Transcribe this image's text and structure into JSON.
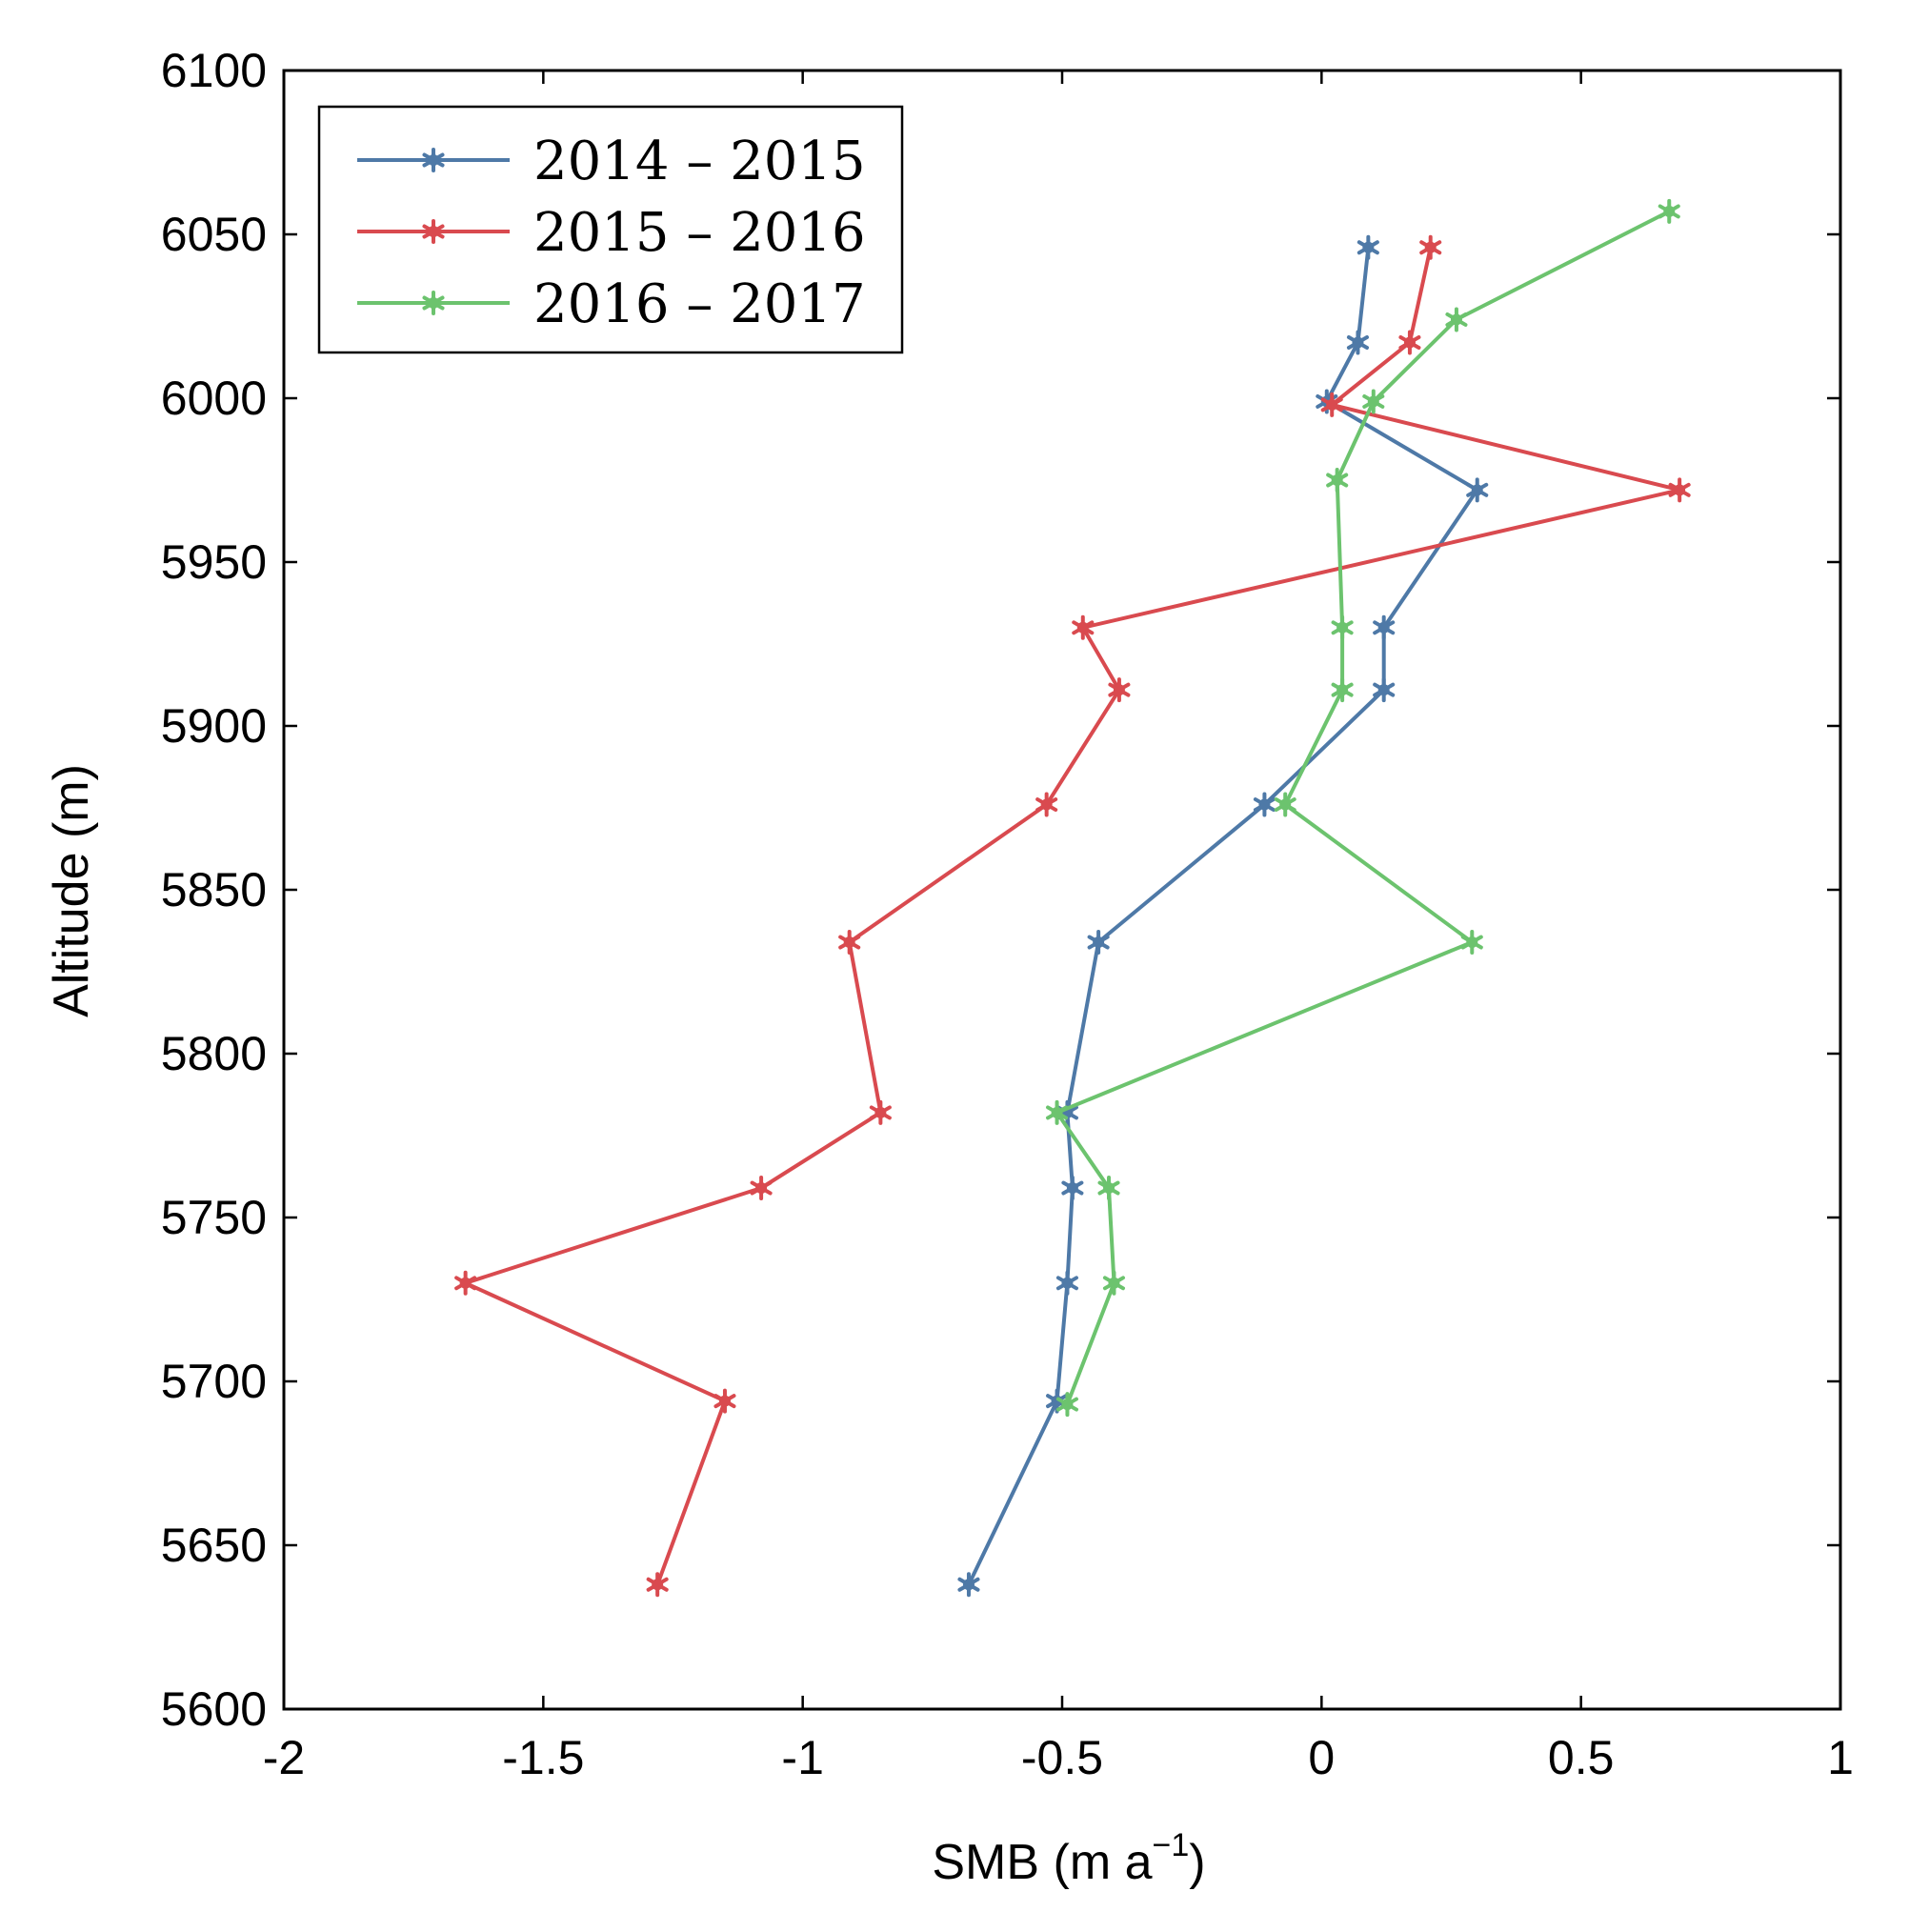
{
  "chart_data": {
    "type": "line",
    "title": "",
    "xlabel": {
      "main": "SMB (m a",
      "superscript": "−1",
      "close": ")"
    },
    "ylabel": "Altitude (m)",
    "xlim": [
      -2,
      1
    ],
    "ylim": [
      5600,
      6100
    ],
    "xticks": [
      -2,
      -1.5,
      -1,
      -0.5,
      0,
      0.5,
      1
    ],
    "xtick_labels": [
      "-2",
      "-1.5",
      "-1",
      "-0.5",
      "0",
      "0.5",
      "1"
    ],
    "yticks": [
      5600,
      5650,
      5700,
      5750,
      5800,
      5850,
      5900,
      5950,
      6000,
      6050,
      6100
    ],
    "ytick_labels": [
      "5600",
      "5650",
      "5700",
      "5750",
      "5800",
      "5850",
      "5900",
      "5950",
      "6000",
      "6050",
      "6100"
    ],
    "grid": false,
    "legend_position": "top-left",
    "marker": "asterisk",
    "series": [
      {
        "name": "2014 – 2015",
        "color": "#4e79a7",
        "points": [
          {
            "x": -0.68,
            "y": 5638
          },
          {
            "x": -0.51,
            "y": 5694
          },
          {
            "x": -0.49,
            "y": 5730
          },
          {
            "x": -0.48,
            "y": 5759
          },
          {
            "x": -0.49,
            "y": 5782
          },
          {
            "x": -0.43,
            "y": 5834
          },
          {
            "x": -0.11,
            "y": 5876
          },
          {
            "x": 0.12,
            "y": 5911
          },
          {
            "x": 0.12,
            "y": 5930
          },
          {
            "x": 0.3,
            "y": 5972
          },
          {
            "x": 0.01,
            "y": 5999
          },
          {
            "x": 0.07,
            "y": 6017
          },
          {
            "x": 0.09,
            "y": 6046
          }
        ]
      },
      {
        "name": "2015 – 2016",
        "color": "#d94a4f",
        "points": [
          {
            "x": -1.28,
            "y": 5638
          },
          {
            "x": -1.15,
            "y": 5694
          },
          {
            "x": -1.65,
            "y": 5730
          },
          {
            "x": -1.08,
            "y": 5759
          },
          {
            "x": -0.85,
            "y": 5782
          },
          {
            "x": -0.91,
            "y": 5834
          },
          {
            "x": -0.53,
            "y": 5876
          },
          {
            "x": -0.39,
            "y": 5911
          },
          {
            "x": -0.46,
            "y": 5930
          },
          {
            "x": 0.69,
            "y": 5972
          },
          {
            "x": 0.02,
            "y": 5998
          },
          {
            "x": 0.17,
            "y": 6017
          },
          {
            "x": 0.21,
            "y": 6046
          }
        ]
      },
      {
        "name": "2016 – 2017",
        "color": "#6cc36e",
        "points": [
          {
            "x": -0.49,
            "y": 5693
          },
          {
            "x": -0.4,
            "y": 5730
          },
          {
            "x": -0.41,
            "y": 5759
          },
          {
            "x": -0.51,
            "y": 5782
          },
          {
            "x": 0.29,
            "y": 5834
          },
          {
            "x": -0.07,
            "y": 5876
          },
          {
            "x": 0.04,
            "y": 5911
          },
          {
            "x": 0.04,
            "y": 5930
          },
          {
            "x": 0.03,
            "y": 5975
          },
          {
            "x": 0.1,
            "y": 5999
          },
          {
            "x": 0.26,
            "y": 6024
          },
          {
            "x": 0.67,
            "y": 6057
          }
        ]
      }
    ]
  }
}
